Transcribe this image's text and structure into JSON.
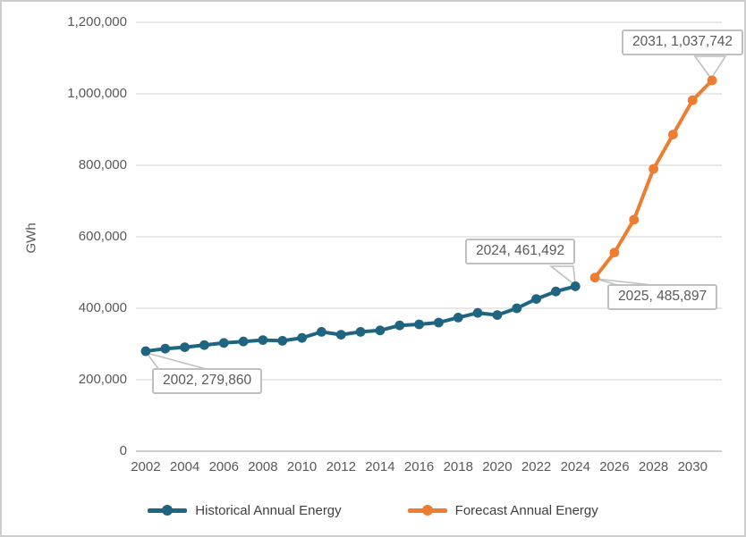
{
  "chart_data": {
    "type": "line",
    "title": "",
    "ylabel": "GWh",
    "xlabel": "",
    "grid": "horizontal",
    "legend_position": "bottom-center",
    "x_years_start": 2002,
    "x_years_end": 2031,
    "y_axis": {
      "min": 0,
      "max": 1200000,
      "step": 200000,
      "tick_labels": [
        "0",
        "200,000",
        "400,000",
        "600,000",
        "800,000",
        "1,000,000",
        "1,200,000"
      ],
      "tick_values": [
        0,
        200000,
        400000,
        600000,
        800000,
        1000000,
        1200000
      ]
    },
    "x_axis": {
      "tick_labels": [
        "2002",
        "2004",
        "2006",
        "2008",
        "2010",
        "2012",
        "2014",
        "2016",
        "2018",
        "2020",
        "2022",
        "2024",
        "2026",
        "2028",
        "2030"
      ],
      "tick_years": [
        2002,
        2004,
        2006,
        2008,
        2010,
        2012,
        2014,
        2016,
        2018,
        2020,
        2022,
        2024,
        2026,
        2028,
        2030
      ]
    },
    "series": [
      {
        "name": "Historical Annual Energy",
        "color": "#1F6480",
        "start_year": 2002,
        "values": [
          279860,
          287000,
          291000,
          297000,
          303000,
          307000,
          311000,
          309000,
          317000,
          334000,
          326000,
          334000,
          338000,
          352000,
          355000,
          360000,
          374000,
          387000,
          381000,
          400000,
          426000,
          447000,
          461492
        ]
      },
      {
        "name": "Forecast Annual Energy",
        "color": "#ED7D31",
        "start_year": 2025,
        "values": [
          485897,
          556000,
          648000,
          790000,
          886000,
          982000,
          1037742
        ]
      }
    ],
    "callouts": [
      {
        "year": 2002,
        "value": 279860,
        "label": "2002, 279,860"
      },
      {
        "year": 2024,
        "value": 461492,
        "label": "2024, 461,492"
      },
      {
        "year": 2025,
        "value": 485897,
        "label": "2025, 485,897"
      },
      {
        "year": 2031,
        "value": 1037742,
        "label": "2031, 1,037,742"
      }
    ],
    "legend": [
      {
        "label": "Historical Annual Energy",
        "color": "#1F6480"
      },
      {
        "label": "Forecast Annual Energy",
        "color": "#ED7D31"
      }
    ],
    "colors": {
      "historical": "#1F6480",
      "forecast": "#ED7D31",
      "gridline": "#D9D9D9",
      "axis_line": "#BFBFBF",
      "tick_text": "#595959",
      "callout_border": "#BFBFBF",
      "frame_border": "#CDCDCD"
    }
  }
}
